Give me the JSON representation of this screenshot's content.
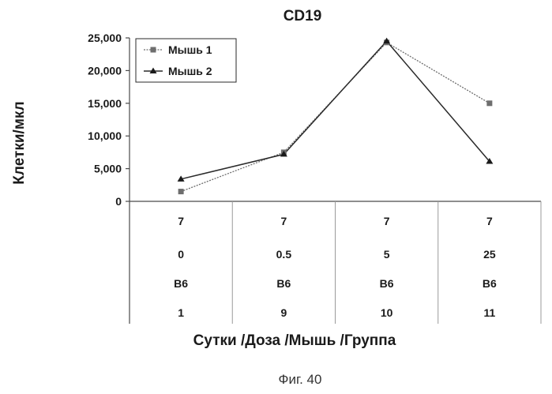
{
  "chart_data": {
    "type": "line",
    "title": "CD19",
    "ylabel": "Клетки/мкл",
    "xlabel": "Сутки /Доза /Мышь /Группа",
    "ylim": [
      0,
      25000
    ],
    "yticks": [
      "0",
      "5,000",
      "10,000",
      "15,000",
      "20,000",
      "25,000"
    ],
    "ytick_values": [
      0,
      5000,
      10000,
      15000,
      20000,
      25000
    ],
    "categories": [
      [
        "7",
        "0",
        "B6",
        "1"
      ],
      [
        "7",
        "0.5",
        "B6",
        "9"
      ],
      [
        "7",
        "5",
        "B6",
        "10"
      ],
      [
        "7",
        "25",
        "B6",
        "11"
      ]
    ],
    "series": [
      {
        "name": "Мышь 1",
        "marker": "square",
        "color": "#6e6e6e",
        "values": [
          1500,
          7500,
          24300,
          15000
        ]
      },
      {
        "name": "Мышь 2",
        "marker": "triangle",
        "color": "#1a1a1a",
        "values": [
          3400,
          7200,
          24500,
          6100
        ]
      }
    ],
    "legend_position": "top-left",
    "grid": false
  },
  "caption": "Фиг. 40"
}
